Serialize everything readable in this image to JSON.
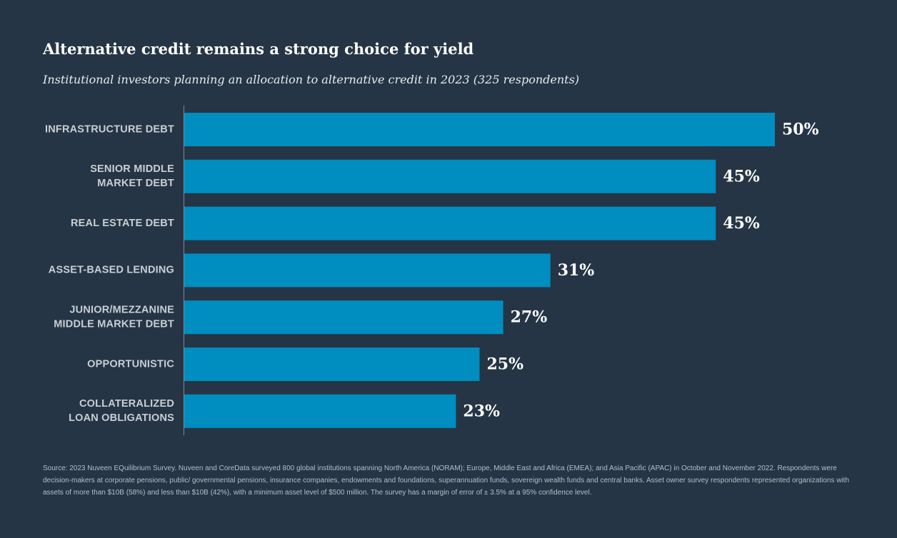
{
  "title": "Alternative credit remains a strong choice for yield",
  "subtitle": "Institutional investors planning an allocation to alternative credit in 2023 (325 respondents)",
  "source": "Source: 2023 Nuveen EQuilibrium Survey. Nuveen and CoreData surveyed 800 global institutions spanning North America (NORAM); Europe, Middle East and Africa (EMEA); and Asia Pacific (APAC) in October and November 2022. Respondents were decision-makers at corporate pensions, public/ governmental pensions, insurance companies, endowments and foundations, superannuation funds, sovereign wealth funds and central banks. Asset owner survey respondents represented organizations with assets of more than $10B (58%) and less than $10B (42%), with a minimum asset level of $500 million. The survey has a margin of error of ± 3.5% at a 95% confidence level.",
  "colors": {
    "background": "#253545",
    "bar": "#008dbf",
    "value_text": "#ffffff",
    "category_text": "#c9ced3"
  },
  "chart_data": {
    "type": "bar",
    "orientation": "horizontal",
    "title": "Alternative credit remains a strong choice for yield",
    "xlabel": "",
    "ylabel": "",
    "xlim": [
      0,
      50
    ],
    "grid": false,
    "categories": [
      [
        "INFRASTRUCTURE DEBT"
      ],
      [
        "SENIOR MIDDLE",
        "MARKET DEBT"
      ],
      [
        "REAL ESTATE DEBT"
      ],
      [
        "ASSET-BASED LENDING"
      ],
      [
        "JUNIOR/MEZZANINE",
        "MIDDLE MARKET DEBT"
      ],
      [
        "OPPORTUNISTIC"
      ],
      [
        "COLLATERALIZED",
        "LOAN OBLIGATIONS"
      ]
    ],
    "values": [
      50,
      45,
      45,
      31,
      27,
      25,
      23
    ],
    "value_labels": [
      "50%",
      "45%",
      "45%",
      "31%",
      "27%",
      "25%",
      "23%"
    ]
  }
}
